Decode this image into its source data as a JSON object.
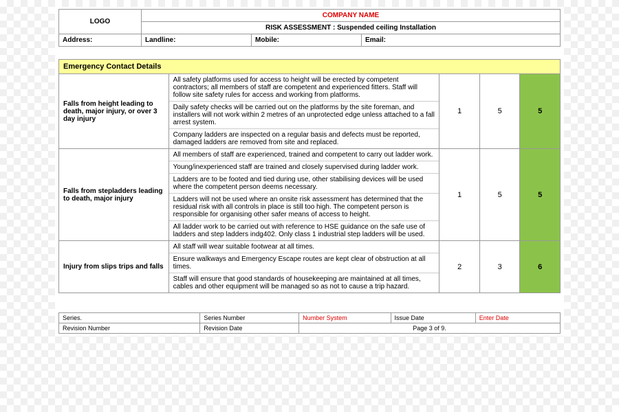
{
  "header": {
    "logo": "LOGO",
    "company_name": "COMPANY NAME",
    "subtitle": "RISK ASSESSMENT : Suspended ceiling Installation",
    "address_label": "Address:",
    "landline_label": "Landline:",
    "mobile_label": "Mobile:",
    "email_label": "Email:"
  },
  "section_header": "Emergency Contact Details",
  "risks": [
    {
      "hazard": "Falls from height leading to death, major injury, or over 3 day injury",
      "controls": [
        "All safety platforms used for access to height will be erected by competent contractors; all members of staff are competent and experienced fitters. Staff will follow site safety rules for access and working from platforms.",
        "Daily safety checks will be carried out on the platforms by the site foreman, and installers will not work within 2 metres of an unprotected edge unless attached to a fall arrest system.",
        "Company ladders are inspected on a regular basis and defects must be reported, damaged ladders are removed from site and replaced."
      ],
      "likelihood": "1",
      "severity": "5",
      "score": "5"
    },
    {
      "hazard": "Falls from stepladders leading to death, major injury",
      "controls": [
        "All members of staff are experienced, trained and competent to carry out ladder work.",
        "Young/inexperienced staff are trained and closely supervised during ladder work.",
        "Ladders are to be footed and tied during use, other stabilising devices will be used where the competent person deems necessary.",
        "Ladders will not be used where an onsite risk assessment has determined that the residual risk with all controls in place is still too high. The competent person is responsible for organising other safer means of access to height.",
        "All ladder work to be carried out with reference to HSE guidance on the safe use of ladders and step ladders indg402. Only class 1 industrial step ladders will be used."
      ],
      "likelihood": "1",
      "severity": "5",
      "score": "5"
    },
    {
      "hazard": "Injury from slips trips and falls",
      "controls": [
        "All staff will wear suitable footwear at all times.",
        "Ensure walkways and Emergency Escape routes are kept clear of obstruction at all times.",
        "Staff will ensure that good standards of housekeeping are maintained at all times, cables and other equipment will be managed so as not to cause a trip hazard."
      ],
      "likelihood": "2",
      "severity": "3",
      "score": "6"
    }
  ],
  "footer": {
    "series_label": "Series.",
    "series_number_label": "Series Number",
    "number_system_label": "Number System",
    "issue_date_label": "Issue Date",
    "enter_date_label": "Enter Date",
    "revision_number_label": "Revision Number",
    "revision_date_label": "Revision Date",
    "page_text": "Page 3 of 9."
  }
}
